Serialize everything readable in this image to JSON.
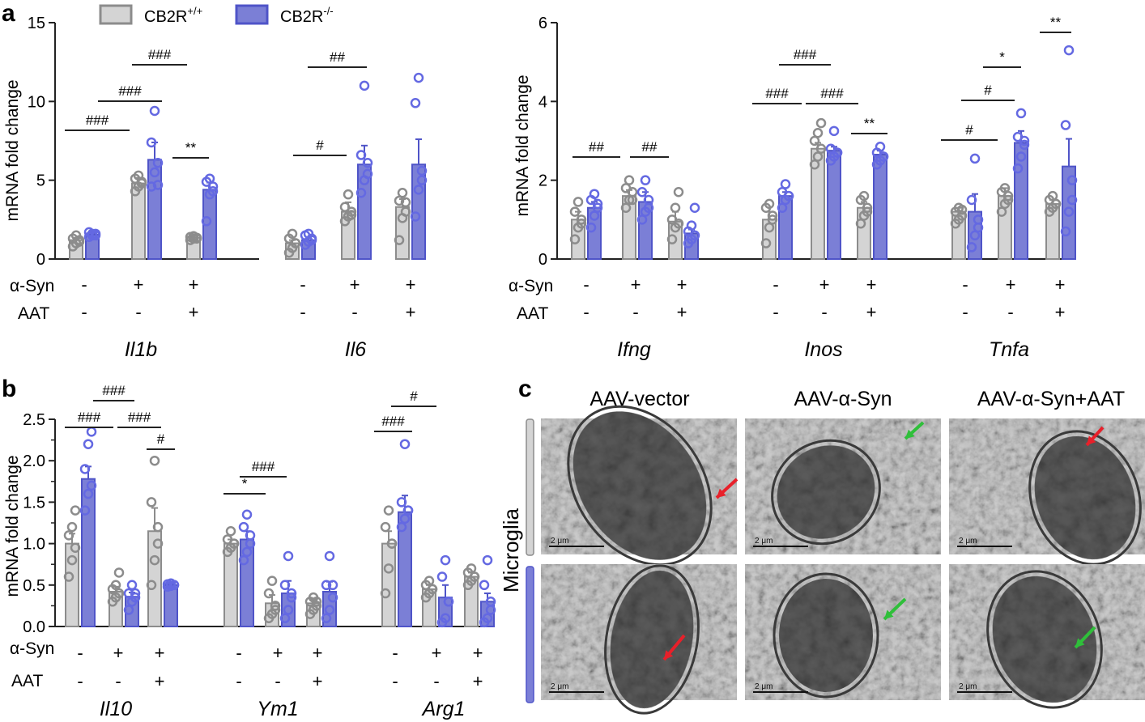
{
  "colors": {
    "wt_fill": "#d4d4d4",
    "wt_stroke": "#8c8c8c",
    "ko_fill": "#7b7fd6",
    "ko_stroke": "#4f54c8",
    "ko_point": "#6469e2",
    "axis": "#222222"
  },
  "legend": {
    "wt_label": "CB2R",
    "wt_sup": "+/+",
    "ko_label": "CB2R",
    "ko_sup": "-/-",
    "placement": "top"
  },
  "rows": {
    "asyn": "α-Syn",
    "aat": "AAT"
  },
  "signs": {
    "asyn": [
      "-",
      "+",
      "+"
    ],
    "aat": [
      "-",
      "-",
      "+"
    ]
  },
  "panel_a": {
    "letter": "a",
    "left_ylabel": "mRNA fold change",
    "right_ylabel": "mRNA fold change",
    "left_yticks": [
      "0",
      "5",
      "10",
      "15"
    ],
    "right_yticks": [
      "0",
      "2",
      "4",
      "6"
    ],
    "genes_left": [
      "Il1b",
      "Il6"
    ],
    "genes_right": [
      "Ifng",
      "Inos",
      "Tnfa"
    ]
  },
  "panel_b": {
    "letter": "b",
    "ylabel": "mRNA fold change",
    "yticks": [
      "0.0",
      "0.5",
      "1.0",
      "1.5",
      "2.0",
      "2.5"
    ],
    "genes": [
      "Il10",
      "Ym1",
      "Arg1"
    ]
  },
  "panel_c": {
    "letter": "c",
    "columns": [
      "AAV-vector",
      "AAV-α-Syn",
      "AAV-α-Syn+AAT"
    ],
    "row_label": "Microglia",
    "scale_label": "2 μm"
  },
  "chart_data": [
    {
      "type": "bar",
      "panel": "a-left",
      "ylabel": "mRNA fold change",
      "ylim": [
        0,
        15
      ],
      "conditions": {
        "α-Syn": [
          "-",
          "+",
          "+"
        ],
        "AAT": [
          "-",
          "-",
          "+"
        ]
      },
      "series": [
        {
          "name": "CB2R+/+",
          "genes": {
            "Il1b": {
              "mean": [
                1.2,
                4.8,
                1.35
              ],
              "sem": [
                0.15,
                0.35,
                0.1
              ],
              "points": [
                [
                  0.8,
                  1.0,
                  1.1,
                  1.3,
                  1.5,
                  1.2
                ],
                [
                  4.3,
                  4.6,
                  4.9,
                  5.1,
                  5.3,
                  4.8
                ],
                [
                  1.2,
                  1.3,
                  1.35,
                  1.4,
                  1.45,
                  1.3
                ]
              ]
            },
            "Il6": {
              "mean": [
                1.0,
                3.0,
                3.3
              ],
              "sem": [
                0.2,
                0.6,
                0.5
              ],
              "points": [
                [
                  0.4,
                  0.7,
                  1.0,
                  1.3,
                  1.6,
                  1.0
                ],
                [
                  2.4,
                  2.7,
                  3.0,
                  3.3,
                  4.1,
                  2.8
                ],
                [
                  1.2,
                  2.6,
                  3.0,
                  3.7,
                  4.2,
                  3.6
                ]
              ]
            }
          }
        },
        {
          "name": "CB2R-/-",
          "genes": {
            "Il1b": {
              "mean": [
                1.55,
                6.3,
                4.4
              ],
              "sem": [
                0.1,
                1.1,
                0.45
              ],
              "points": [
                [
                  1.4,
                  1.5,
                  1.6,
                  1.7,
                  1.6,
                  1.5
                ],
                [
                  4.6,
                  5.5,
                  6.1,
                  7.4,
                  9.4,
                  4.7
                ],
                [
                  2.4,
                  4.1,
                  4.6,
                  4.9,
                  5.1,
                  4.3
                ]
              ]
            },
            "Il6": {
              "mean": [
                1.2,
                6.0,
                6.0
              ],
              "sem": [
                0.2,
                1.2,
                1.6
              ],
              "points": [
                [
                  0.9,
                  1.1,
                  1.3,
                  1.5,
                  1.6,
                  1.2
                ],
                [
                  4.2,
                  5.0,
                  6.1,
                  6.6,
                  11.0,
                  5.4
                ],
                [
                  2.7,
                  4.4,
                  5.0,
                  9.9,
                  11.5,
                  5.6
                ]
              ]
            }
          }
        }
      ],
      "annotations": [
        "###",
        "###",
        "###",
        "**",
        "#",
        "##"
      ]
    },
    {
      "type": "bar",
      "panel": "a-right",
      "ylabel": "mRNA fold change",
      "ylim": [
        0,
        6
      ],
      "conditions": {
        "α-Syn": [
          "-",
          "+",
          "+"
        ],
        "AAT": [
          "-",
          "-",
          "+"
        ]
      },
      "series": [
        {
          "name": "CB2R+/+",
          "genes": {
            "Ifng": {
              "mean": [
                1.0,
                1.6,
                0.95
              ],
              "sem": [
                0.2,
                0.15,
                0.25
              ],
              "points": [
                [
                  0.5,
                  0.8,
                  1.0,
                  1.2,
                  1.45,
                  0.9
                ],
                [
                  1.3,
                  1.5,
                  1.7,
                  1.8,
                  2.0,
                  1.5
                ],
                [
                  0.5,
                  0.8,
                  0.9,
                  1.0,
                  1.3,
                  1.7
                ]
              ]
            },
            "Inos": {
              "mean": [
                1.0,
                2.8,
                1.3
              ],
              "sem": [
                0.2,
                0.15,
                0.15
              ],
              "points": [
                [
                  0.4,
                  0.8,
                  1.1,
                  1.3,
                  1.4,
                  1.0
                ],
                [
                  2.4,
                  2.6,
                  2.8,
                  3.0,
                  3.2,
                  3.45
                ],
                [
                  0.9,
                  1.1,
                  1.3,
                  1.5,
                  1.6,
                  1.2
                ]
              ]
            },
            "Tnfa": {
              "mean": [
                1.2,
                1.6,
                1.4
              ],
              "sem": [
                0.1,
                0.2,
                0.1
              ],
              "points": [
                [
                  0.9,
                  1.0,
                  1.1,
                  1.2,
                  1.3,
                  1.25
                ],
                [
                  1.2,
                  1.4,
                  1.6,
                  1.7,
                  1.8,
                  1.5
                ],
                [
                  1.2,
                  1.3,
                  1.4,
                  1.5,
                  1.6,
                  1.4
                ]
              ]
            }
          }
        },
        {
          "name": "CB2R-/-",
          "genes": {
            "Ifng": {
              "mean": [
                1.3,
                1.45,
                0.65
              ],
              "sem": [
                0.15,
                0.25,
                0.1
              ],
              "points": [
                [
                  0.8,
                  1.1,
                  1.3,
                  1.5,
                  1.65,
                  1.4
                ],
                [
                  1.0,
                  1.2,
                  1.5,
                  1.7,
                  2.0,
                  1.3
                ],
                [
                  0.4,
                  0.5,
                  0.6,
                  0.7,
                  0.85,
                  1.3
                ]
              ]
            },
            "Inos": {
              "mean": [
                1.6,
                2.75,
                2.65
              ],
              "sem": [
                0.1,
                0.1,
                0.1
              ],
              "points": [
                [
                  1.3,
                  1.5,
                  1.6,
                  1.7,
                  1.9,
                  1.6
                ],
                [
                  2.5,
                  2.6,
                  2.7,
                  2.8,
                  3.25,
                  2.7
                ],
                [
                  2.4,
                  2.5,
                  2.6,
                  2.7,
                  2.85,
                  2.6
                ]
              ]
            },
            "Tnfa": {
              "mean": [
                1.2,
                2.95,
                2.35
              ],
              "sem": [
                0.45,
                0.3,
                0.7
              ],
              "points": [
                [
                  0.3,
                  0.6,
                  1.0,
                  1.5,
                  2.55,
                  0.8
                ],
                [
                  2.3,
                  2.6,
                  2.9,
                  3.1,
                  3.7,
                  3.0
                ],
                [
                  0.7,
                  1.2,
                  1.5,
                  3.4,
                  5.3,
                  2.0
                ]
              ]
            }
          }
        }
      ],
      "annotations": [
        "##",
        "##",
        "###",
        "###",
        "###",
        "**",
        "#",
        "#",
        "*",
        "**"
      ]
    },
    {
      "type": "bar",
      "panel": "b",
      "ylabel": "mRNA fold change",
      "ylim": [
        0,
        2.5
      ],
      "conditions": {
        "α-Syn": [
          "-",
          "+",
          "+"
        ],
        "AAT": [
          "-",
          "-",
          "+"
        ]
      },
      "series": [
        {
          "name": "CB2R+/+",
          "genes": {
            "Il10": {
              "mean": [
                1.0,
                0.42,
                1.15
              ],
              "sem": [
                0.12,
                0.06,
                0.28
              ],
              "points": [
                [
                  0.6,
                  0.8,
                  0.95,
                  1.1,
                  1.2,
                  1.4
                ],
                [
                  0.3,
                  0.35,
                  0.4,
                  0.45,
                  0.5,
                  0.65
                ],
                [
                  0.5,
                  0.8,
                  1.0,
                  1.5,
                  2.0,
                  1.2
                ]
              ]
            },
            "Ym1": {
              "mean": [
                1.0,
                0.28,
                0.28
              ],
              "sem": [
                0.05,
                0.1,
                0.05
              ],
              "points": [
                [
                  0.9,
                  0.95,
                  1.0,
                  1.05,
                  1.15,
                  1.0
                ],
                [
                  0.1,
                  0.15,
                  0.25,
                  0.4,
                  0.55,
                  0.2
                ],
                [
                  0.15,
                  0.2,
                  0.25,
                  0.3,
                  0.35,
                  0.3
                ]
              ]
            },
            "Arg1": {
              "mean": [
                1.0,
                0.45,
                0.6
              ],
              "sem": [
                0.15,
                0.05,
                0.05
              ],
              "points": [
                [
                  0.4,
                  0.7,
                  1.0,
                  1.2,
                  1.4,
                  1.0
                ],
                [
                  0.35,
                  0.4,
                  0.45,
                  0.5,
                  0.55,
                  0.45
                ],
                [
                  0.5,
                  0.55,
                  0.6,
                  0.65,
                  0.7,
                  0.6
                ]
              ]
            }
          }
        },
        {
          "name": "CB2R-/-",
          "genes": {
            "Il10": {
              "mean": [
                1.78,
                0.36,
                0.5
              ],
              "sem": [
                0.15,
                0.05,
                0.01
              ],
              "points": [
                [
                  1.4,
                  1.6,
                  1.7,
                  1.9,
                  2.2,
                  2.35
                ],
                [
                  0.2,
                  0.3,
                  0.35,
                  0.4,
                  0.5,
                  0.4
                ],
                [
                  0.48,
                  0.49,
                  0.5,
                  0.51,
                  0.52,
                  0.5
                ]
              ]
            },
            "Ym1": {
              "mean": [
                1.05,
                0.4,
                0.42
              ],
              "sem": [
                0.1,
                0.15,
                0.12
              ],
              "points": [
                [
                  0.8,
                  0.9,
                  1.0,
                  1.2,
                  1.35,
                  1.1
                ],
                [
                  0.1,
                  0.2,
                  0.35,
                  0.5,
                  0.85,
                  0.4
                ],
                [
                  0.1,
                  0.2,
                  0.35,
                  0.5,
                  0.85,
                  0.5
                ]
              ]
            },
            "Arg1": {
              "mean": [
                1.38,
                0.35,
                0.3
              ],
              "sem": [
                0.2,
                0.15,
                0.1
              ],
              "points": [
                [
                  1.2,
                  1.3,
                  1.4,
                  1.5,
                  2.2,
                  1.4
                ],
                [
                  0.05,
                  0.1,
                  0.3,
                  0.6,
                  0.8,
                  0.3
                ],
                [
                  0.05,
                  0.1,
                  0.3,
                  0.5,
                  0.8,
                  0.2
                ]
              ]
            }
          }
        }
      ],
      "annotations": [
        "###",
        "###",
        "###",
        "#",
        "*",
        "###",
        "###",
        "#",
        "##"
      ]
    }
  ]
}
